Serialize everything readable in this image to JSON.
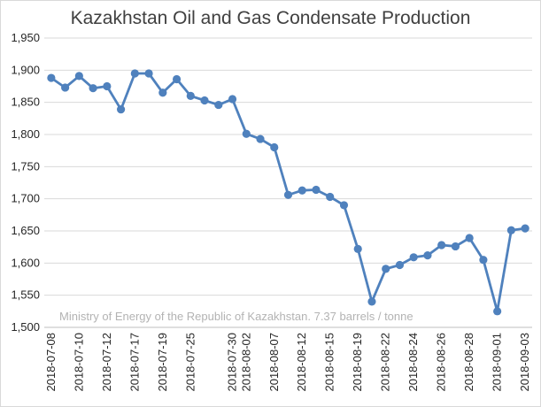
{
  "chart_data": {
    "type": "line",
    "title": "Kazakhstan Oil and Gas Condensate Production",
    "xlabel": "",
    "ylabel": "",
    "ylim": [
      1500,
      1950
    ],
    "yticks": [
      1500,
      1550,
      1600,
      1650,
      1700,
      1750,
      1800,
      1850,
      1900,
      1950
    ],
    "ytick_labels": [
      "1,500",
      "1,550",
      "1,600",
      "1,650",
      "1,700",
      "1,750",
      "1,800",
      "1,850",
      "1,900",
      "1,950"
    ],
    "grid": true,
    "legend": "none",
    "color": "#4f81bd",
    "annotation": "Ministry of Energy of the Republic of Kazakhstan. 7.37 barrels / tonne",
    "x": [
      "2018-07-08",
      "2018-07-09",
      "2018-07-10",
      "2018-07-11",
      "2018-07-12",
      "2018-07-13",
      "2018-07-17",
      "2018-07-18",
      "2018-07-19",
      "2018-07-20",
      "2018-07-25",
      "2018-07-26",
      "2018-07-27",
      "2018-07-30",
      "2018-08-02",
      "2018-08-03",
      "2018-08-07",
      "2018-08-08",
      "2018-08-12",
      "2018-08-13",
      "2018-08-15",
      "2018-08-16",
      "2018-08-19",
      "2018-08-20",
      "2018-08-22",
      "2018-08-23",
      "2018-08-24",
      "2018-08-25",
      "2018-08-26",
      "2018-08-27",
      "2018-08-28",
      "2018-08-31",
      "2018-09-01",
      "2018-09-02",
      "2018-09-03"
    ],
    "xtick_labels": [
      "2018-07-08",
      "2018-07-10",
      "2018-07-12",
      "2018-07-17",
      "2018-07-19",
      "2018-07-25",
      "2018-07-30",
      "2018-08-02",
      "2018-08-07",
      "2018-08-12",
      "2018-08-15",
      "2018-08-19",
      "2018-08-22",
      "2018-08-24",
      "2018-08-26",
      "2018-08-28",
      "2018-09-01",
      "2018-09-03"
    ],
    "series": [
      {
        "values": [
          1888,
          1873,
          1891,
          1872,
          1875,
          1839,
          1895,
          1895,
          1865,
          1886,
          1860,
          1853,
          1846,
          1855,
          1801,
          1793,
          1780,
          1706,
          1713,
          1714,
          1703,
          1690,
          1622,
          1540,
          1591,
          1597,
          1609,
          1612,
          1628,
          1626,
          1639,
          1605,
          1525,
          1651,
          1654
        ]
      }
    ]
  }
}
